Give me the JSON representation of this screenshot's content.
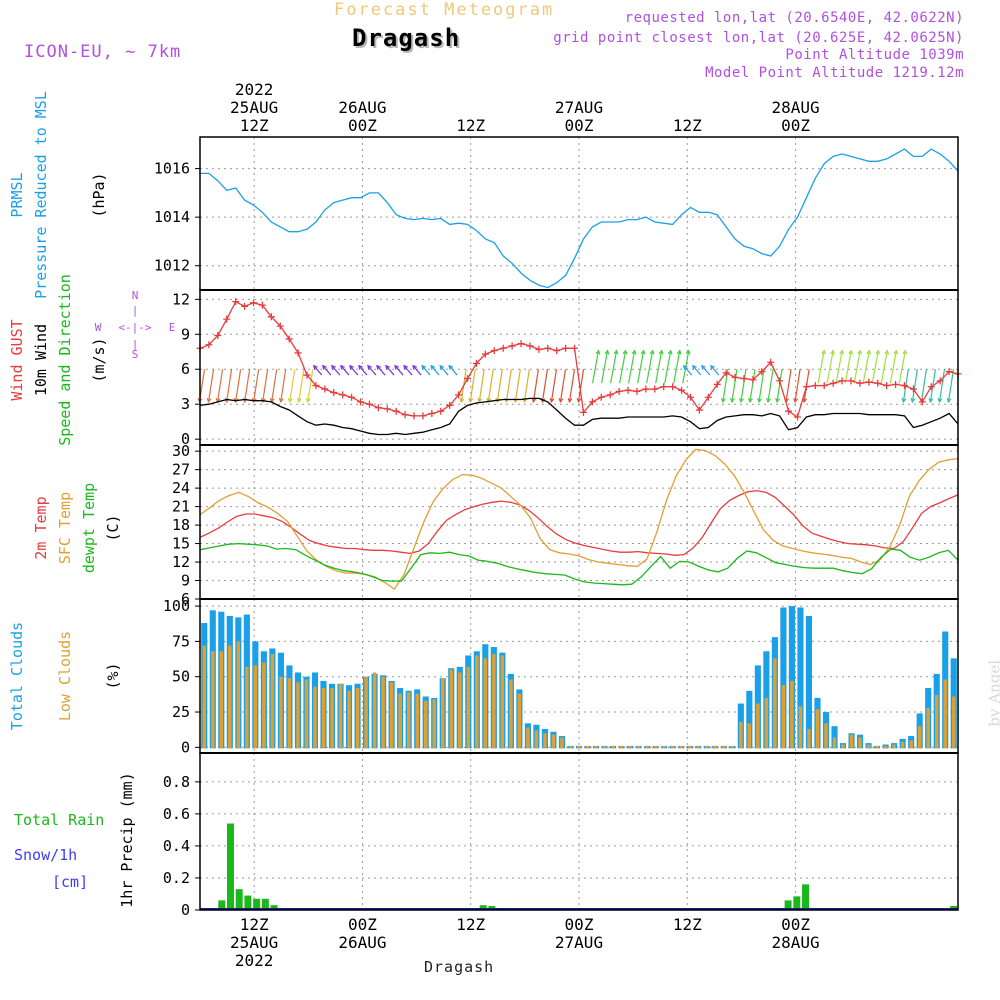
{
  "header": {
    "model": "ICON-EU, ~ 7km",
    "title": "Forecast Meteogram",
    "station": "Dragash",
    "requested": "requested lon,lat (20.6540E, 42.0622N)",
    "grid_point": "grid point closest lon,lat (20.625E, 42.0625N)",
    "point_altitude": "Point Altitude 1039m",
    "model_altitude": "Model Point Altitude 1219.12m"
  },
  "watermark": "by Angel",
  "footer_station": "Dragash",
  "time_axis": {
    "top": [
      {
        "lines": [
          "2022",
          "25AUG",
          "12Z"
        ]
      },
      {
        "lines": [
          "26AUG",
          "00Z"
        ]
      },
      {
        "lines": [
          "12Z"
        ]
      },
      {
        "lines": [
          "27AUG",
          "00Z"
        ]
      },
      {
        "lines": [
          "12Z"
        ]
      },
      {
        "lines": [
          "28AUG",
          "00Z"
        ]
      }
    ],
    "bottom": [
      {
        "lines": [
          "12Z",
          "25AUG",
          "2022"
        ]
      },
      {
        "lines": [
          "00Z",
          "26AUG"
        ]
      },
      {
        "lines": [
          "12Z"
        ]
      },
      {
        "lines": [
          "00Z",
          "27AUG"
        ]
      },
      {
        "lines": [
          "12Z"
        ]
      },
      {
        "lines": [
          "00Z",
          "28AUG"
        ]
      }
    ]
  },
  "panel_labels": {
    "pressure": [
      {
        "text": "PRMSL",
        "color": "#1aa0e8"
      },
      {
        "text": "Pressure Reduced to MSL",
        "color": "#1aa0e8"
      },
      {
        "text": "(hPa)",
        "color": "#000000"
      }
    ],
    "wind": [
      {
        "text": "Wind GUST",
        "color": "#e83c3c"
      },
      {
        "text": "10m Wind",
        "color": "#000000"
      },
      {
        "text": "Speed and Direction",
        "color": "#1ab81a"
      },
      {
        "text": "(m/s)",
        "color": "#000000"
      }
    ],
    "temp": [
      {
        "text": "2m Temp",
        "color": "#e83c3c"
      },
      {
        "text": "SFC Temp",
        "color": "#e0a030"
      },
      {
        "text": "dewpt Temp",
        "color": "#1ab81a"
      },
      {
        "text": "(C)",
        "color": "#000000"
      }
    ],
    "clouds": [
      {
        "text": "Total Clouds",
        "color": "#1aa0e8"
      },
      {
        "text": "Low Clouds",
        "color": "#e0a030"
      },
      {
        "text": "(%)",
        "color": "#000000"
      }
    ],
    "precip_left": [
      {
        "text": "Total  Rain",
        "color": "#1ab81a"
      },
      {
        "text": "Snow/1h",
        "color": "#3c3cff"
      },
      {
        "text": "[cm]",
        "color": "#3c3cff"
      }
    ],
    "precip_axis": "1hr Precip (mm)"
  },
  "compass": {
    "n": "N",
    "s": "S",
    "w": "W",
    "e": "E",
    "arrow": "<-|->"
  },
  "chart_data": [
    {
      "type": "line",
      "name": "pressure",
      "x_range": [
        0,
        84
      ],
      "ylim": [
        1011,
        1017.3
      ],
      "yticks": [
        1012,
        1014,
        1016
      ],
      "series": [
        {
          "name": "PRMSL",
          "color": "#1aa0e8",
          "values": [
            1015.8,
            1015.8,
            1015.5,
            1015.1,
            1015.2,
            1014.7,
            1014.5,
            1014.2,
            1013.8,
            1013.6,
            1013.4,
            1013.4,
            1013.5,
            1013.8,
            1014.3,
            1014.6,
            1014.7,
            1014.8,
            1014.8,
            1015.0,
            1015.0,
            1014.6,
            1014.1,
            1013.95,
            1013.9,
            1013.95,
            1013.9,
            1013.95,
            1013.7,
            1013.75,
            1013.7,
            1013.45,
            1013.1,
            1012.95,
            1012.4,
            1012.1,
            1011.7,
            1011.4,
            1011.2,
            1011.1,
            1011.3,
            1011.6,
            1012.3,
            1013.1,
            1013.6,
            1013.8,
            1013.8,
            1013.8,
            1013.9,
            1013.9,
            1014.0,
            1013.8,
            1013.75,
            1013.7,
            1014.1,
            1014.4,
            1014.2,
            1014.2,
            1014.1,
            1013.6,
            1013.1,
            1012.8,
            1012.7,
            1012.5,
            1012.4,
            1012.8,
            1013.5,
            1014.0,
            1014.8,
            1015.6,
            1016.2,
            1016.5,
            1016.6,
            1016.5,
            1016.4,
            1016.3,
            1016.3,
            1016.4,
            1016.6,
            1016.8,
            1016.5,
            1016.5,
            1016.8,
            1016.6,
            1016.3,
            1015.9
          ]
        }
      ]
    },
    {
      "type": "line",
      "name": "wind",
      "x_range": [
        0,
        84
      ],
      "ylim": [
        -0.5,
        12.8
      ],
      "yticks": [
        0,
        3,
        6,
        9,
        12
      ],
      "series": [
        {
          "name": "Wind GUST",
          "color": "#e83c3c",
          "values": [
            7.8,
            8.1,
            8.9,
            10.3,
            11.8,
            11.4,
            11.7,
            11.5,
            10.5,
            9.7,
            8.6,
            7.4,
            5.5,
            4.6,
            4.3,
            4.0,
            3.8,
            3.6,
            3.2,
            3.0,
            2.7,
            2.6,
            2.4,
            2.1,
            2.0,
            2.0,
            2.2,
            2.4,
            2.9,
            3.8,
            5.2,
            6.5,
            7.3,
            7.6,
            7.8,
            8.0,
            8.2,
            8.0,
            7.7,
            7.8,
            7.6,
            7.8,
            7.8,
            2.3,
            3.2,
            3.6,
            3.8,
            4.1,
            4.2,
            4.1,
            4.3,
            4.3,
            4.5,
            4.5,
            4.2,
            3.6,
            2.5,
            3.6,
            4.7,
            5.7,
            5.3,
            5.2,
            5.1,
            5.8,
            6.6,
            5.0,
            2.4,
            1.9,
            4.5,
            4.6,
            4.6,
            4.8,
            5.0,
            5.0,
            4.8,
            4.9,
            4.8,
            4.6,
            4.7,
            4.6,
            4.3,
            3.2,
            4.5,
            5.0,
            5.8,
            5.6
          ]
        },
        {
          "name": "10m Wind",
          "color": "#000000",
          "values": [
            2.9,
            3.0,
            3.2,
            3.4,
            3.3,
            3.4,
            3.3,
            3.3,
            3.2,
            2.8,
            2.5,
            2.0,
            1.5,
            1.2,
            1.3,
            1.2,
            1.0,
            0.9,
            0.7,
            0.5,
            0.4,
            0.4,
            0.5,
            0.4,
            0.5,
            0.6,
            0.8,
            1.0,
            1.3,
            2.4,
            2.9,
            3.1,
            3.2,
            3.3,
            3.4,
            3.4,
            3.4,
            3.5,
            3.5,
            3.2,
            2.5,
            1.8,
            1.2,
            1.2,
            1.7,
            1.8,
            1.8,
            1.8,
            1.9,
            1.9,
            1.9,
            1.9,
            1.9,
            2.0,
            1.9,
            1.5,
            0.9,
            1.0,
            1.6,
            1.9,
            2.0,
            2.1,
            2.1,
            2.0,
            2.2,
            2.0,
            0.8,
            1.0,
            1.9,
            2.1,
            2.1,
            2.2,
            2.2,
            2.2,
            2.2,
            2.1,
            2.1,
            2.1,
            2.1,
            2.0,
            1.0,
            1.2,
            1.5,
            1.8,
            2.2,
            1.3
          ]
        }
      ],
      "wind_barb_zones": [
        {
          "from": 0,
          "to": 10,
          "color": "#e0703c",
          "dir": "down"
        },
        {
          "from": 10,
          "to": 13,
          "color": "#d8d030",
          "dir": "down"
        },
        {
          "from": 13,
          "to": 25,
          "color": "#8030e0",
          "dir": "left"
        },
        {
          "from": 25,
          "to": 29,
          "color": "#20a0e0",
          "dir": "left"
        },
        {
          "from": 29,
          "to": 37,
          "color": "#d8b030",
          "dir": "down"
        },
        {
          "from": 37,
          "to": 43,
          "color": "#e05030",
          "dir": "down"
        },
        {
          "from": 43,
          "to": 54,
          "color": "#40d040",
          "dir": "up"
        },
        {
          "from": 54,
          "to": 58,
          "color": "#30a0e0",
          "dir": "left"
        },
        {
          "from": 58,
          "to": 65,
          "color": "#40d040",
          "dir": "down"
        },
        {
          "from": 65,
          "to": 68,
          "color": "#e05030",
          "dir": "down"
        },
        {
          "from": 68,
          "to": 78,
          "color": "#a0e040",
          "dir": "up"
        },
        {
          "from": 78,
          "to": 84,
          "color": "#30c0a0",
          "dir": "down"
        }
      ]
    },
    {
      "type": "line",
      "name": "temp",
      "x_range": [
        0,
        84
      ],
      "ylim": [
        6,
        31
      ],
      "yticks": [
        6,
        9,
        12,
        15,
        18,
        21,
        24,
        27,
        30
      ],
      "series": [
        {
          "name": "2m Temp",
          "color": "#e83c3c",
          "values": [
            16.0,
            16.7,
            17.5,
            18.5,
            19.4,
            19.8,
            19.8,
            19.5,
            19.2,
            18.6,
            17.6,
            16.5,
            15.5,
            15.0,
            14.6,
            14.4,
            14.2,
            14.2,
            14.0,
            13.9,
            13.9,
            13.8,
            13.6,
            13.4,
            13.8,
            15.0,
            17.0,
            18.8,
            19.7,
            20.5,
            21.0,
            21.4,
            21.7,
            21.9,
            21.7,
            21.3,
            20.4,
            19.2,
            17.8,
            16.6,
            15.7,
            15.1,
            14.7,
            14.4,
            14.1,
            13.8,
            13.6,
            13.6,
            13.7,
            13.5,
            13.4,
            13.3,
            13.1,
            13.2,
            14.3,
            16.0,
            18.4,
            20.7,
            22.0,
            22.8,
            23.4,
            23.6,
            23.3,
            22.5,
            21.1,
            19.7,
            17.9,
            16.7,
            16.2,
            15.7,
            15.3,
            15.0,
            14.9,
            14.8,
            14.6,
            14.3,
            14.2,
            15.3,
            17.5,
            19.9,
            21.0,
            21.6,
            22.3,
            22.9
          ]
        },
        {
          "name": "SFC Temp",
          "color": "#e0a030",
          "values": [
            19.7,
            20.8,
            22.0,
            22.8,
            23.3,
            22.6,
            21.6,
            20.9,
            19.9,
            18.6,
            16.2,
            13.8,
            12.3,
            11.3,
            10.6,
            10.2,
            10.2,
            10.0,
            9.6,
            8.7,
            7.6,
            10.0,
            14.2,
            18.4,
            21.8,
            23.9,
            25.4,
            26.2,
            26.1,
            25.6,
            24.8,
            24.0,
            22.6,
            21.2,
            19.2,
            15.8,
            14.0,
            13.5,
            13.3,
            13.0,
            12.4,
            12.0,
            11.8,
            11.6,
            11.4,
            11.3,
            12.5,
            16.8,
            22.0,
            26.0,
            28.6,
            30.3,
            30.1,
            29.3,
            27.9,
            26.0,
            23.3,
            20.2,
            17.2,
            15.5,
            14.6,
            14.2,
            13.8,
            13.5,
            13.3,
            13.1,
            12.8,
            12.6,
            12.0,
            11.6,
            12.4,
            14.5,
            18.0,
            22.7,
            25.2,
            27.0,
            28.2,
            28.6,
            28.8
          ]
        },
        {
          "name": "dewpt Temp",
          "color": "#1ab81a",
          "values": [
            14.0,
            14.3,
            14.6,
            14.9,
            15.0,
            14.9,
            14.8,
            14.6,
            14.1,
            14.2,
            14.0,
            13.1,
            12.3,
            11.5,
            11.0,
            10.6,
            10.4,
            10.1,
            9.6,
            9.0,
            8.9,
            8.9,
            11.0,
            13.2,
            13.5,
            13.4,
            13.6,
            13.2,
            13.0,
            12.3,
            12.1,
            11.8,
            11.3,
            10.9,
            10.6,
            10.3,
            10.1,
            10.0,
            9.9,
            9.3,
            8.8,
            8.6,
            8.5,
            8.4,
            8.3,
            8.4,
            9.6,
            11.3,
            12.9,
            11.0,
            12.1,
            12.0,
            11.3,
            10.7,
            10.4,
            11.0,
            12.6,
            13.8,
            13.5,
            12.7,
            11.9,
            11.6,
            11.3,
            11.1,
            11.0,
            11.0,
            11.0,
            10.6,
            10.3,
            10.1,
            10.9,
            12.8,
            14.1,
            13.9,
            12.8,
            12.3,
            12.8,
            13.5,
            13.9,
            12.3
          ]
        }
      ]
    },
    {
      "type": "bar",
      "name": "clouds",
      "x_range": [
        0,
        84
      ],
      "ylim": [
        -4,
        105
      ],
      "yticks": [
        0,
        25,
        50,
        75,
        100
      ],
      "series": [
        {
          "name": "Total Clouds",
          "color": "#1aa0e8",
          "values": [
            88,
            97,
            96,
            93,
            92,
            94,
            75,
            68,
            70,
            67,
            58,
            53,
            50,
            53,
            47,
            45,
            45,
            44,
            45,
            50,
            52,
            51,
            47,
            42,
            40,
            41,
            36,
            35,
            49,
            56,
            57,
            65,
            68,
            73,
            71,
            67,
            52,
            41,
            17,
            16,
            13,
            11,
            8,
            1,
            1,
            1,
            1,
            1,
            1,
            1,
            1,
            1,
            1,
            1,
            1,
            1,
            1,
            1,
            1,
            1,
            1,
            1,
            1,
            31,
            40,
            58,
            68,
            78,
            99,
            100,
            99,
            93,
            35,
            25,
            15,
            3,
            10,
            9,
            3,
            1,
            2,
            3,
            6,
            8,
            24,
            42,
            52,
            82,
            63
          ]
        },
        {
          "name": "Low Clouds",
          "color": "#e0a030",
          "values": [
            72,
            68,
            68,
            72,
            75,
            57,
            58,
            60,
            66,
            50,
            49,
            46,
            48,
            43,
            42,
            42,
            45,
            40,
            42,
            50,
            53,
            50,
            46,
            38,
            39,
            38,
            33,
            34,
            49,
            55,
            53,
            57,
            65,
            63,
            66,
            65,
            48,
            38,
            14,
            12,
            10,
            9,
            7,
            1,
            1,
            1,
            1,
            1,
            1,
            1,
            1,
            1,
            1,
            1,
            1,
            1,
            1,
            1,
            1,
            1,
            1,
            1,
            1,
            18,
            17,
            31,
            35,
            63,
            44,
            47,
            29,
            13,
            27,
            17,
            7,
            2,
            9,
            7,
            2,
            1,
            1,
            2,
            4,
            5,
            15,
            28,
            37,
            48,
            36
          ]
        }
      ]
    },
    {
      "type": "bar",
      "name": "precip",
      "x_range": [
        0,
        84
      ],
      "ylim": [
        0,
        0.98
      ],
      "yticks": [
        0,
        0.2,
        0.4,
        0.6,
        0.8
      ],
      "series": [
        {
          "name": "Total Rain",
          "color": "#1ab81a",
          "values": [
            0,
            0,
            0.06,
            0.54,
            0.13,
            0.09,
            0.07,
            0.07,
            0.03,
            0.01,
            0,
            0,
            0,
            0,
            0,
            0,
            0,
            0,
            0,
            0,
            0,
            0,
            0,
            0,
            0,
            0,
            0,
            0,
            0,
            0,
            0,
            0,
            0.03,
            0.025,
            0,
            0,
            0,
            0,
            0,
            0,
            0,
            0,
            0,
            0,
            0,
            0,
            0,
            0,
            0,
            0,
            0,
            0,
            0,
            0,
            0,
            0,
            0,
            0,
            0,
            0,
            0,
            0,
            0,
            0,
            0,
            0,
            0,
            0.06,
            0.085,
            0.16,
            0,
            0,
            0,
            0,
            0,
            0,
            0,
            0,
            0,
            0,
            0,
            0,
            0,
            0,
            0,
            0.01,
            0.025
          ]
        }
      ]
    }
  ]
}
